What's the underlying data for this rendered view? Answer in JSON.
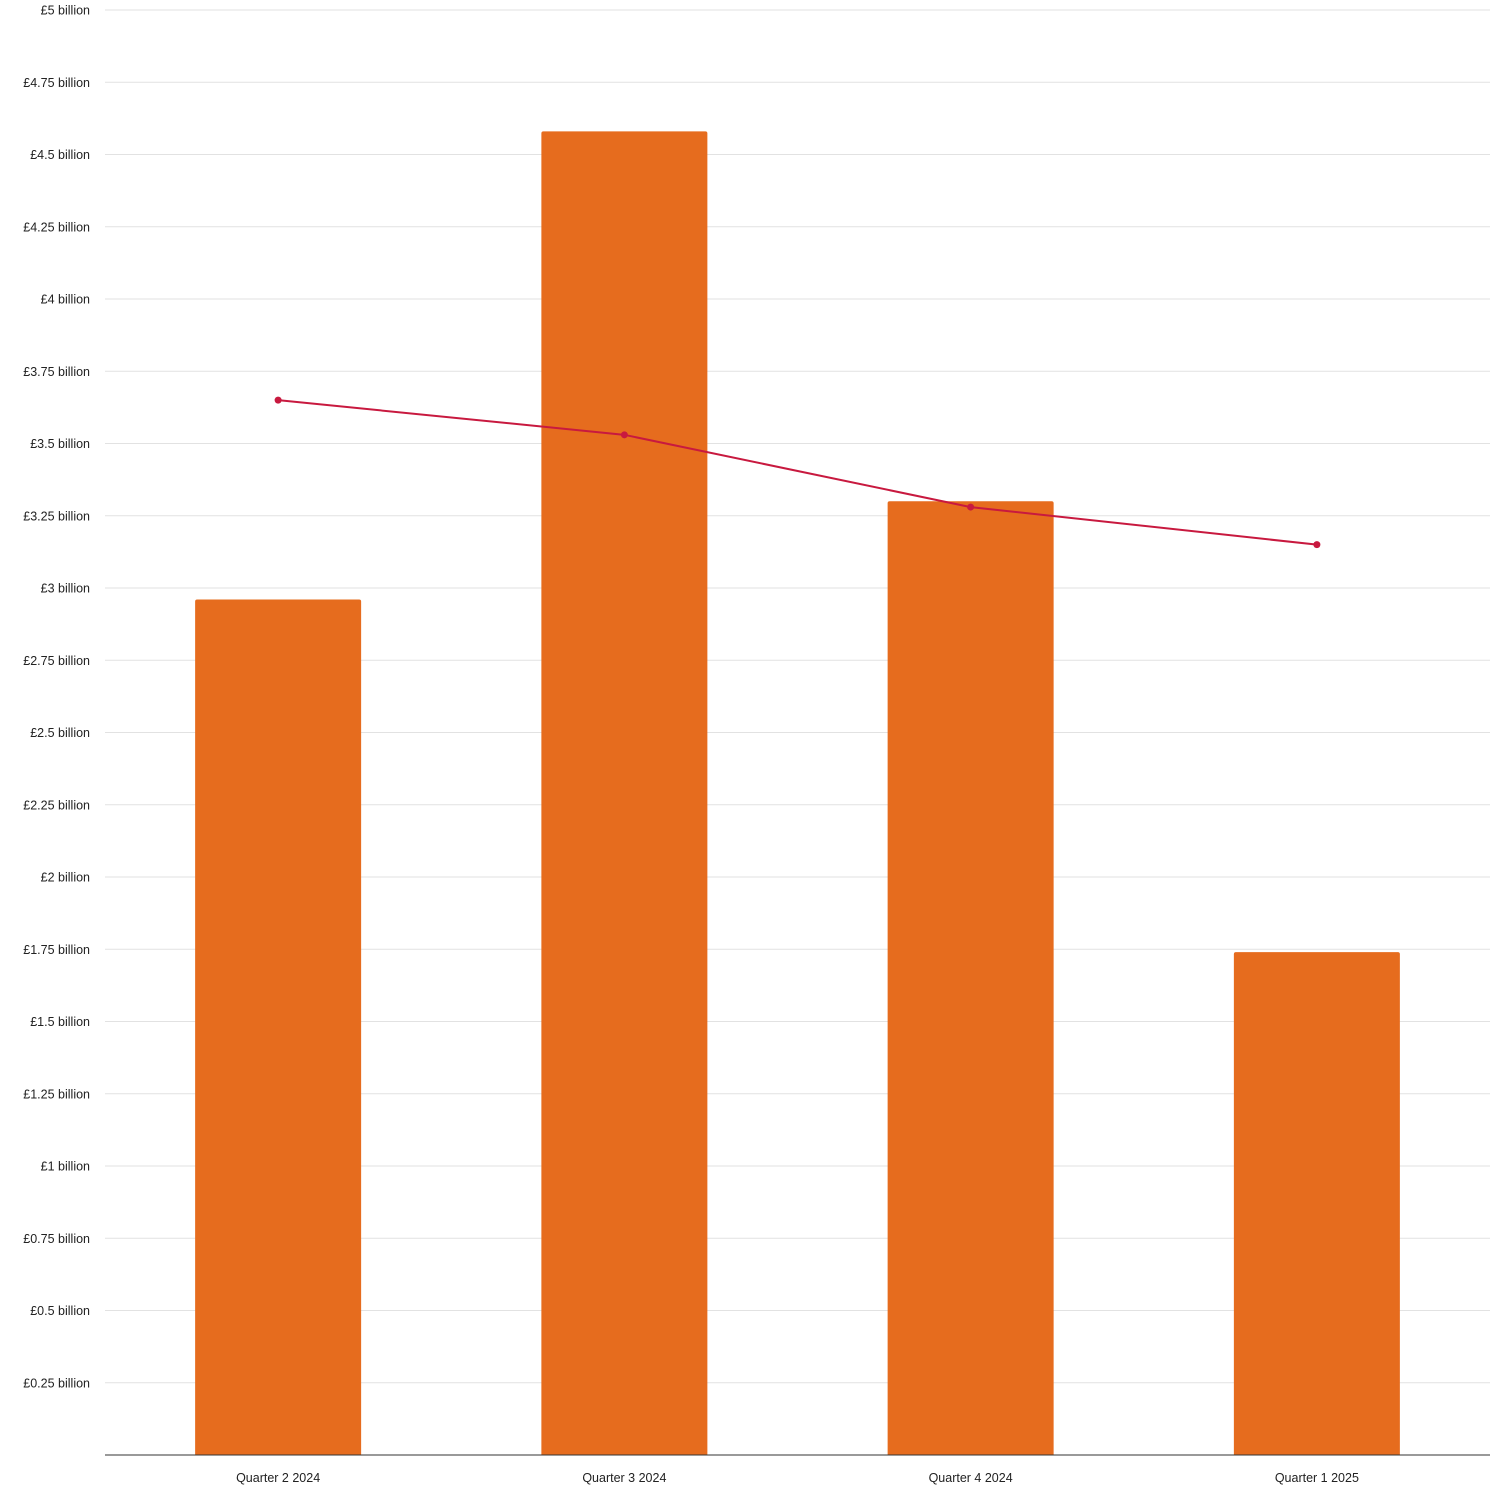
{
  "chart_data": {
    "type": "bar",
    "categories": [
      "Quarter 2 2024",
      "Quarter 3 2024",
      "Quarter 4 2024",
      "Quarter 1 2025"
    ],
    "series": [
      {
        "type": "bar",
        "values": [
          2.96,
          4.58,
          3.3,
          1.74
        ],
        "color": "#E66C1E"
      },
      {
        "type": "line",
        "values": [
          3.65,
          3.53,
          3.28,
          3.15
        ],
        "color": "#C8193F"
      }
    ],
    "ylim": [
      0,
      5
    ],
    "y_ticks": [
      {
        "value": 0.25,
        "label": "£0.25 billion"
      },
      {
        "value": 0.5,
        "label": "£0.5 billion"
      },
      {
        "value": 0.75,
        "label": "£0.75 billion"
      },
      {
        "value": 1,
        "label": "£1 billion"
      },
      {
        "value": 1.25,
        "label": "£1.25 billion"
      },
      {
        "value": 1.5,
        "label": "£1.5 billion"
      },
      {
        "value": 1.75,
        "label": "£1.75 billion"
      },
      {
        "value": 2,
        "label": "£2 billion"
      },
      {
        "value": 2.25,
        "label": "£2.25 billion"
      },
      {
        "value": 2.5,
        "label": "£2.5 billion"
      },
      {
        "value": 2.75,
        "label": "£2.75 billion"
      },
      {
        "value": 3,
        "label": "£3 billion"
      },
      {
        "value": 3.25,
        "label": "£3.25 billion"
      },
      {
        "value": 3.5,
        "label": "£3.5 billion"
      },
      {
        "value": 3.75,
        "label": "£3.75 billion"
      },
      {
        "value": 4,
        "label": "£4 billion"
      },
      {
        "value": 4.25,
        "label": "£4.25 billion"
      },
      {
        "value": 4.5,
        "label": "£4.5 billion"
      },
      {
        "value": 4.75,
        "label": "£4.75 billion"
      },
      {
        "value": 5,
        "label": "£5 billion"
      }
    ],
    "grid": true,
    "legend": "none"
  }
}
